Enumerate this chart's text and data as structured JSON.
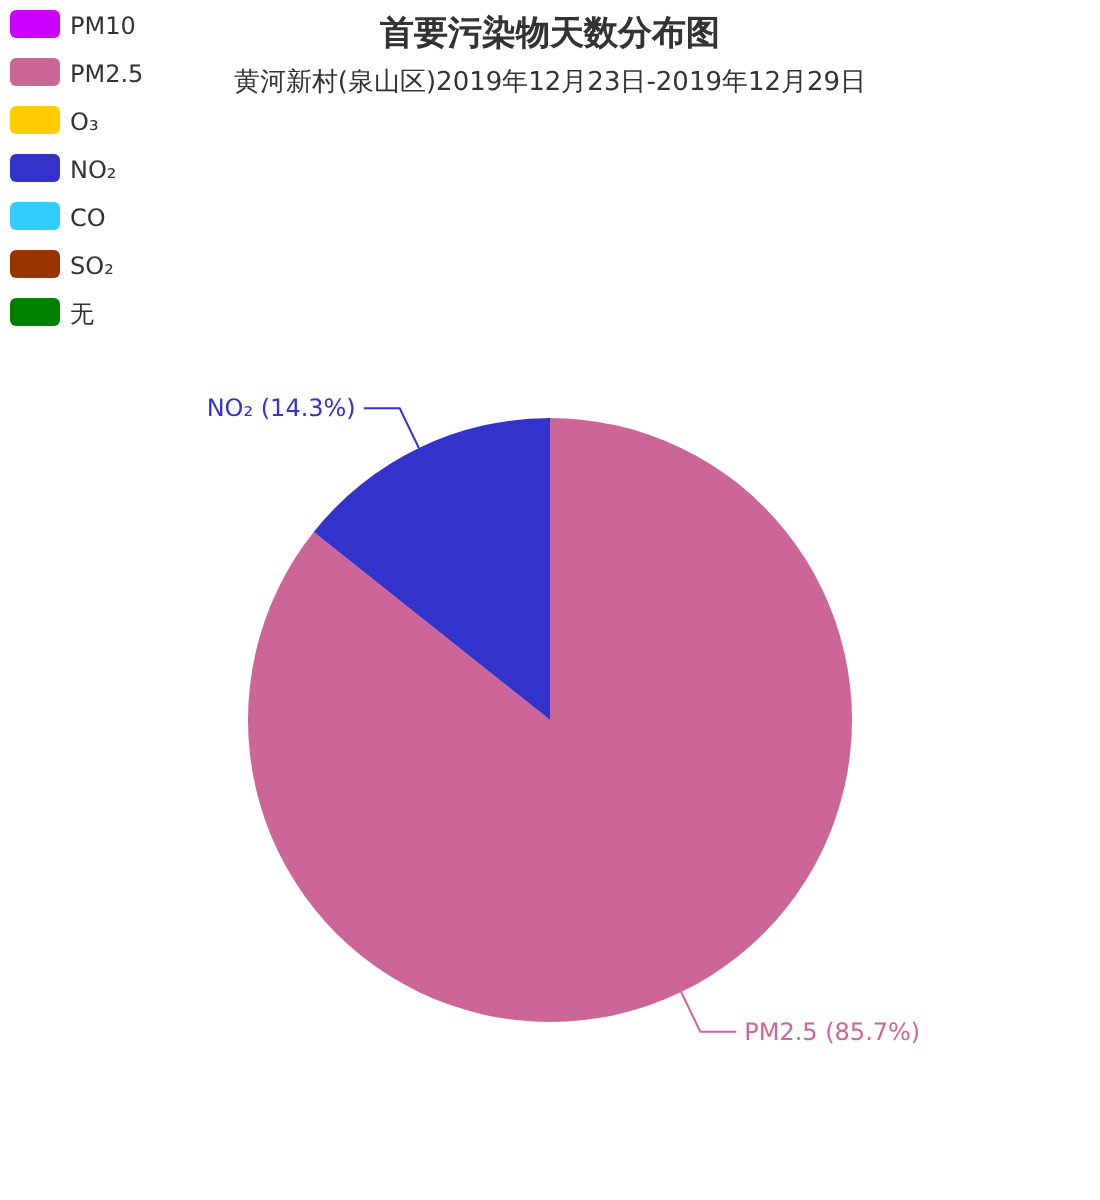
{
  "chart_data": {
    "type": "pie",
    "title": "首要污染物天数分布图",
    "subtitle": "黄河新村(泉山区)2019年12月23日-2019年12月29日",
    "categories": [
      "PM10",
      "PM2.5",
      "O₃",
      "NO₂",
      "CO",
      "SO₂",
      "无"
    ],
    "values": [
      0,
      85.7,
      0,
      14.3,
      0,
      0,
      0
    ],
    "colors": [
      "#cc00ff",
      "#cc6699",
      "#ffcc00",
      "#3333cc",
      "#33ccff",
      "#993300",
      "#008000"
    ],
    "value_labels": [
      null,
      "PM2.5 (85.7%)",
      null,
      "NO₂ (14.3%)",
      null,
      null,
      null
    ],
    "legend": "top left"
  }
}
